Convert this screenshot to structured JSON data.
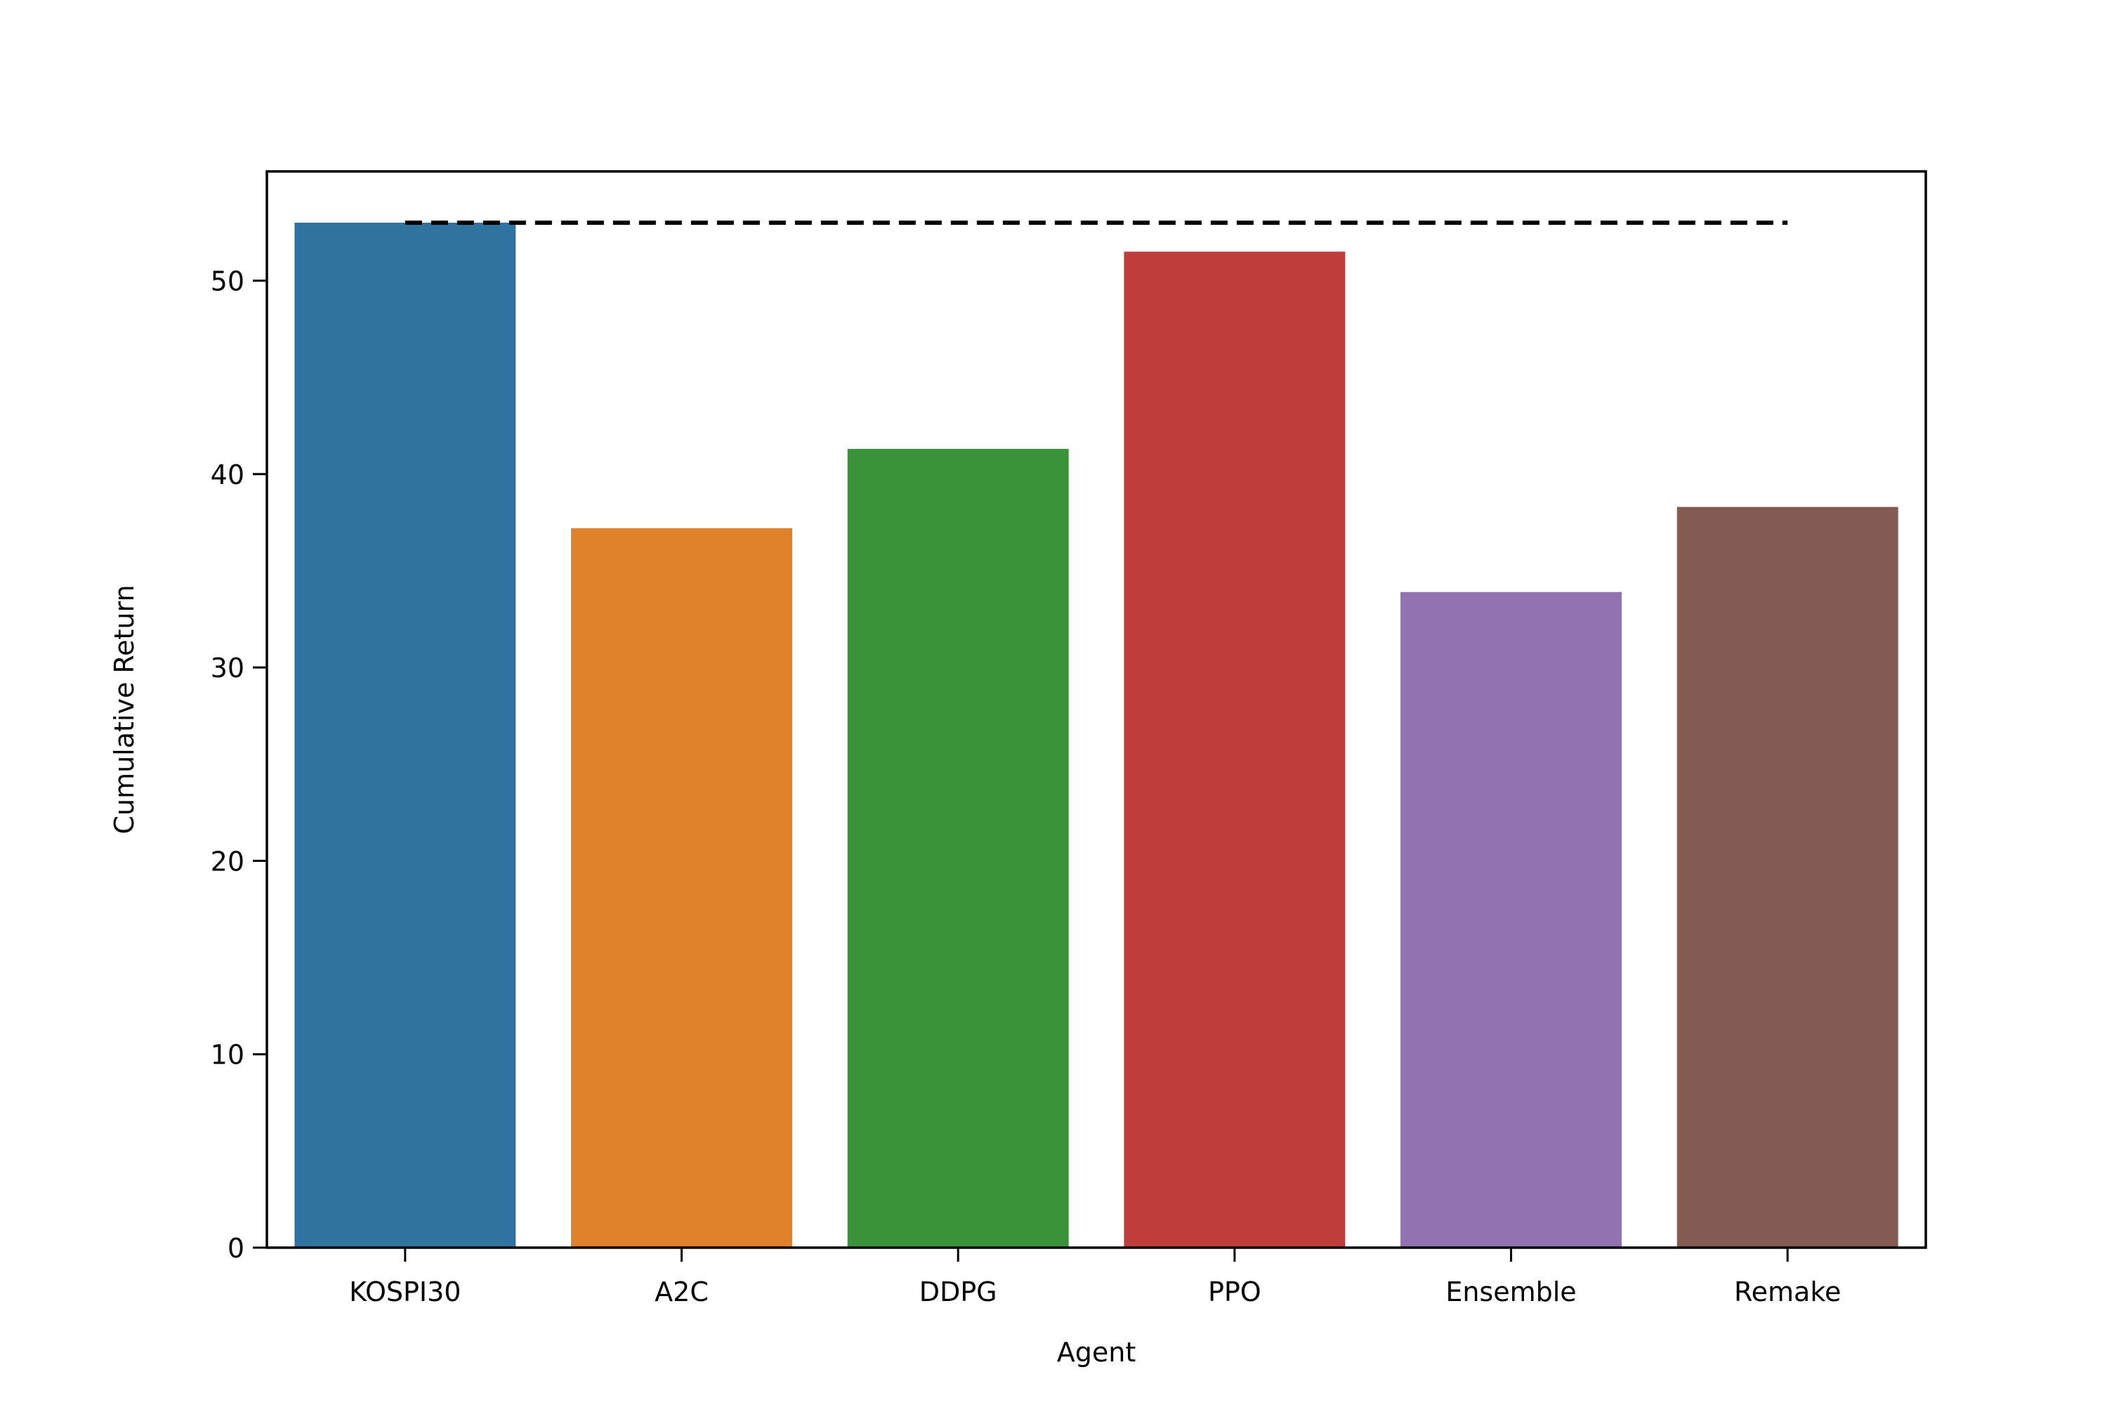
{
  "chart_data": {
    "type": "bar",
    "title": "",
    "xlabel": "Agent",
    "ylabel": "Cumulative Return",
    "categories": [
      "KOSPI30",
      "A2C",
      "DDPG",
      "PPO",
      "Ensemble",
      "Remake"
    ],
    "values": [
      53.0,
      37.2,
      41.3,
      51.5,
      33.9,
      38.3
    ],
    "colors": [
      "#3274A1",
      "#E1812C",
      "#3A923A",
      "#C03D3E",
      "#9372B2",
      "#845B53"
    ],
    "ylim": [
      0,
      55.65
    ],
    "yticks": [
      0,
      10,
      20,
      30,
      40,
      50
    ],
    "reference_line": {
      "value": 53.0,
      "style": "dashed",
      "color": "#000000"
    },
    "grid": false,
    "legend": "none"
  }
}
